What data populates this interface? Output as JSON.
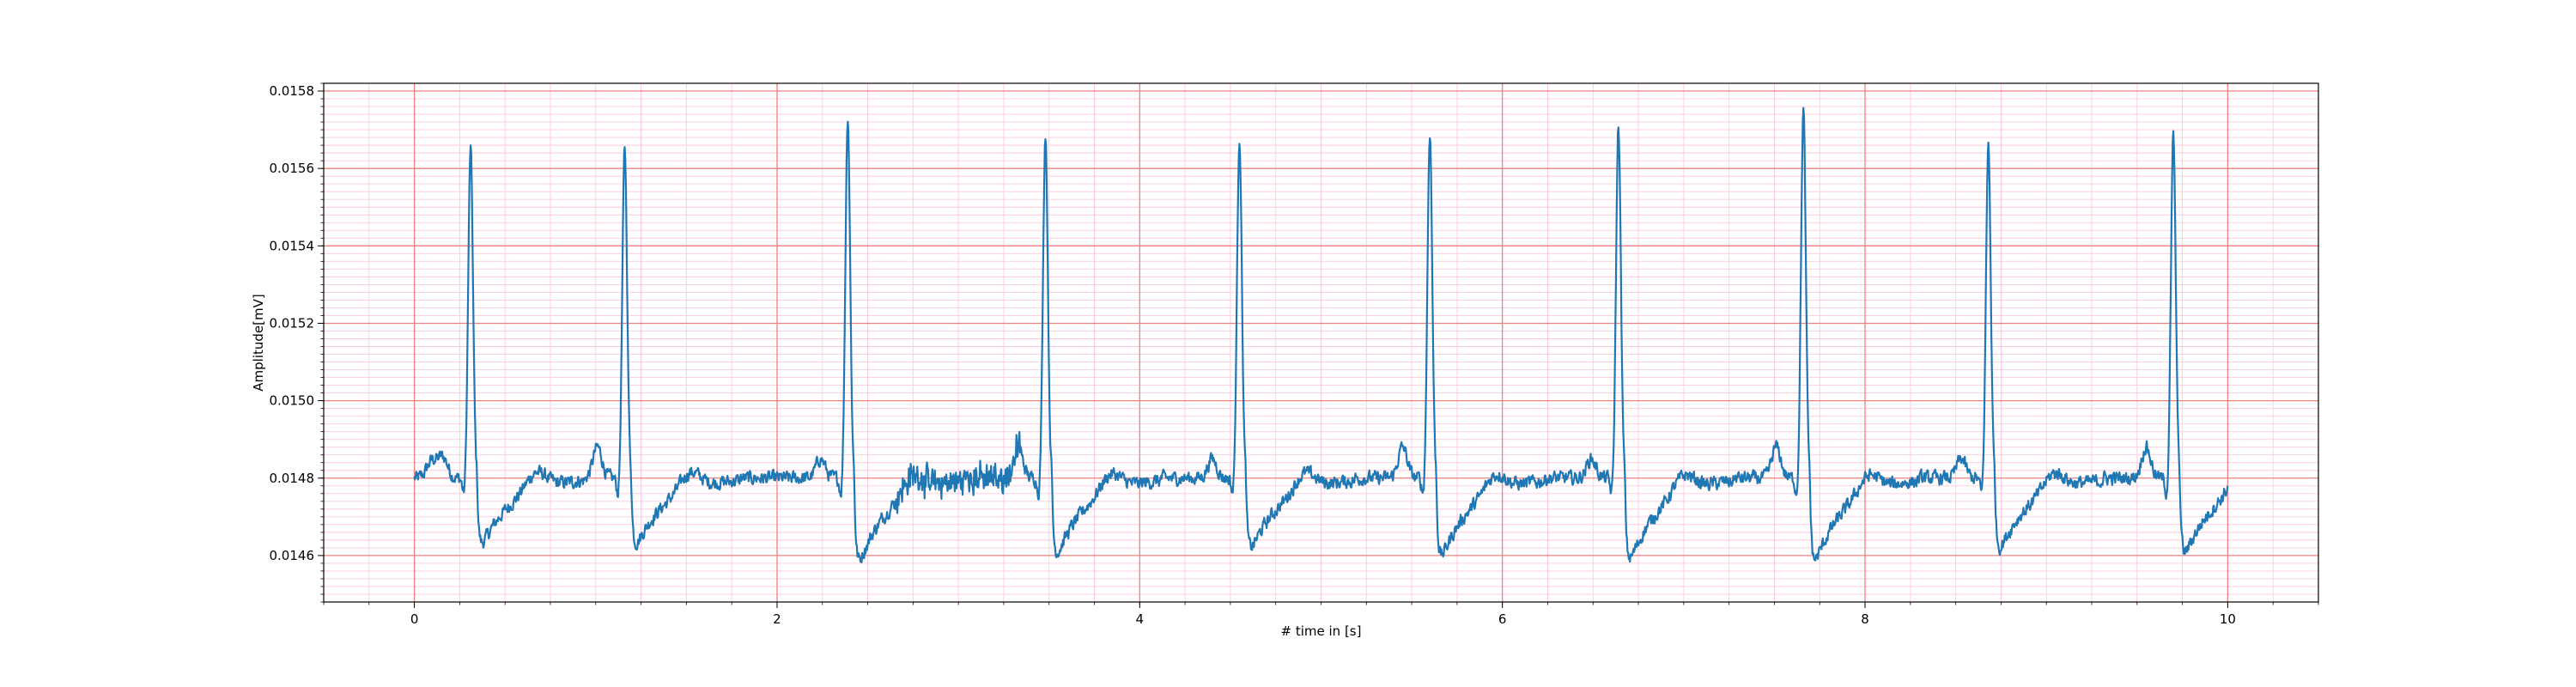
{
  "chart_data": {
    "type": "line",
    "title": "",
    "xlabel": "# time in [s]",
    "ylabel": "Amplitude[mV]",
    "xlim": [
      -0.5,
      10.5
    ],
    "ylim": [
      0.01448,
      0.01582
    ],
    "x_ticks": [
      0,
      2,
      4,
      6,
      8,
      10
    ],
    "x_tick_labels": [
      "0",
      "2",
      "4",
      "6",
      "8",
      "10"
    ],
    "y_ticks": [
      0.0146,
      0.0148,
      0.015,
      0.0152,
      0.0154,
      0.0156,
      0.0158
    ],
    "y_tick_labels": [
      "0.0146",
      "0.0148",
      "0.0150",
      "0.0152",
      "0.0154",
      "0.0156",
      "0.0158"
    ],
    "grid": {
      "major": true,
      "minor": true,
      "major_color": "#f08080",
      "minor_color": "#ffc8e0"
    },
    "line_color": "#1f77b4",
    "baseline": 0.0148,
    "beats": [
      {
        "t": 0.31,
        "peak": 0.015652,
        "trough": 0.014592
      },
      {
        "t": 1.16,
        "peak": 0.015652,
        "trough": 0.014592
      },
      {
        "t": 2.39,
        "peak": 0.015735,
        "trough": 0.014538
      },
      {
        "t": 3.48,
        "peak": 0.015692,
        "trough": 0.014562
      },
      {
        "t": 4.55,
        "peak": 0.015682,
        "trough": 0.014578
      },
      {
        "t": 5.6,
        "peak": 0.015695,
        "trough": 0.014552
      },
      {
        "t": 6.64,
        "peak": 0.015712,
        "trough": 0.014542
      },
      {
        "t": 7.66,
        "peak": 0.015752,
        "trough": 0.014538
      },
      {
        "t": 8.68,
        "peak": 0.015662,
        "trough": 0.014578
      },
      {
        "t": 9.7,
        "peak": 0.015682,
        "trough": 0.014562
      }
    ],
    "x_start": 0.0,
    "x_end": 10.0
  }
}
